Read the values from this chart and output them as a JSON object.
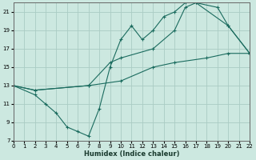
{
  "xlabel": "Humidex (Indice chaleur)",
  "xlim": [
    0,
    22
  ],
  "ylim": [
    7,
    22
  ],
  "xticks": [
    0,
    1,
    2,
    3,
    4,
    5,
    6,
    7,
    8,
    9,
    10,
    11,
    12,
    13,
    14,
    15,
    16,
    17,
    18,
    19,
    20,
    21,
    22
  ],
  "yticks": [
    7,
    9,
    11,
    13,
    15,
    17,
    19,
    21
  ],
  "background_color": "#cce8e0",
  "grid_color": "#aaccc4",
  "line_color": "#1a6b5e",
  "line1_x": [
    0,
    2,
    3,
    4,
    5,
    6,
    7,
    8,
    9,
    10,
    11,
    12,
    13,
    14,
    15,
    16,
    17,
    20,
    22
  ],
  "line1_y": [
    13,
    12,
    11,
    10,
    8.5,
    8,
    7.5,
    10.5,
    15,
    18,
    19.5,
    18,
    19,
    20.5,
    21,
    22,
    22,
    19.5,
    16.5
  ],
  "line2_x": [
    0,
    2,
    7,
    9,
    10,
    13,
    15,
    16,
    17,
    19,
    20,
    22
  ],
  "line2_y": [
    13,
    12.5,
    13,
    15.5,
    16,
    17,
    19,
    21.5,
    22,
    21.5,
    19.5,
    16.5
  ],
  "line3_x": [
    0,
    2,
    7,
    10,
    13,
    15,
    18,
    20,
    22
  ],
  "line3_y": [
    13,
    12.5,
    13,
    13.5,
    15,
    15.5,
    16,
    16.5,
    16.5
  ]
}
